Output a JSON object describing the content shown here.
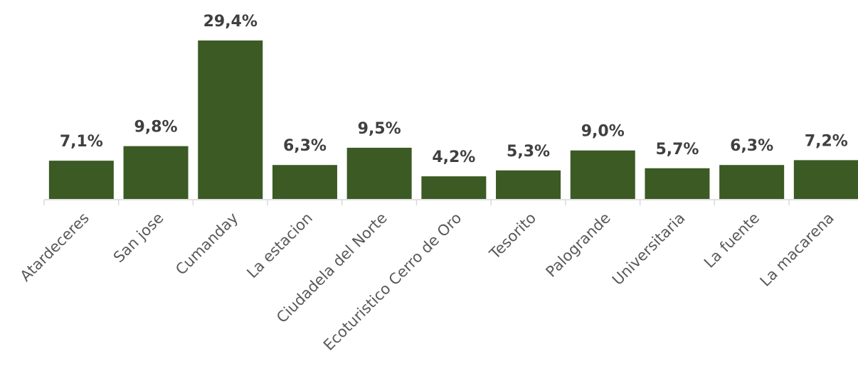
{
  "chart_data": {
    "type": "bar",
    "categories": [
      "Atardeceres",
      "San jose",
      "Cumanday",
      "La estacion",
      "Ciudadela del Norte",
      "Ecoturistico Cerro de Oro",
      "Tesorito",
      "Palogrande",
      "Universitaria",
      "La fuente",
      "La macarena"
    ],
    "values": [
      7.1,
      9.8,
      29.4,
      6.3,
      9.5,
      4.2,
      5.3,
      9.0,
      5.7,
      6.3,
      7.2
    ],
    "value_labels": [
      "7,1%",
      "9,8%",
      "29,4%",
      "6,3%",
      "9,5%",
      "4,2%",
      "5,3%",
      "9,0%",
      "5,7%",
      "6,3%",
      "7,2%"
    ],
    "color": "#3b5a24",
    "ylim": [
      0,
      30
    ]
  }
}
